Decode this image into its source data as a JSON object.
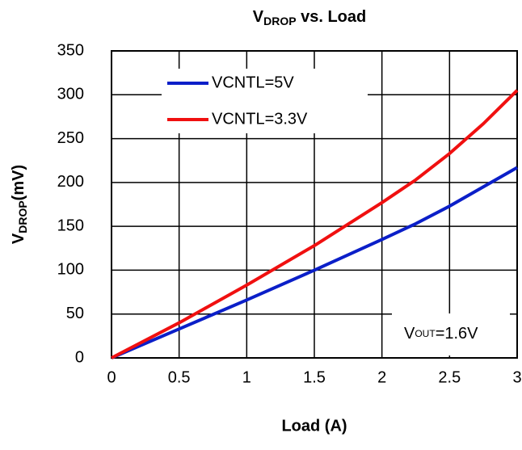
{
  "chart_data": {
    "type": "line",
    "title": [
      "V",
      "DROP",
      " vs. Load"
    ],
    "y_label": [
      "V",
      "DROP",
      "(mV)"
    ],
    "x_label": "Load (A)",
    "annotation": [
      "V",
      "OUT",
      "=1.6V"
    ],
    "x": [
      0,
      0.5,
      1,
      1.5,
      2,
      2.25,
      2.5,
      2.75,
      3
    ],
    "series": [
      {
        "name": "VCNTL=5V",
        "color": "#0b1fc8",
        "values": [
          0,
          33,
          66,
          100,
          135,
          153,
          173,
          195,
          217
        ]
      },
      {
        "name": "VCNTL=3.3V",
        "color": "#f01010",
        "values": [
          0,
          40,
          83,
          128,
          177,
          203,
          233,
          267,
          305
        ]
      }
    ],
    "xlim": [
      0,
      3
    ],
    "xticks": [
      0,
      0.5,
      1,
      1.5,
      2,
      2.5,
      3
    ],
    "ylim": [
      0,
      350
    ],
    "yticks": [
      0,
      50,
      100,
      150,
      200,
      250,
      300,
      350
    ],
    "grid": true,
    "legend": "upper-left"
  }
}
